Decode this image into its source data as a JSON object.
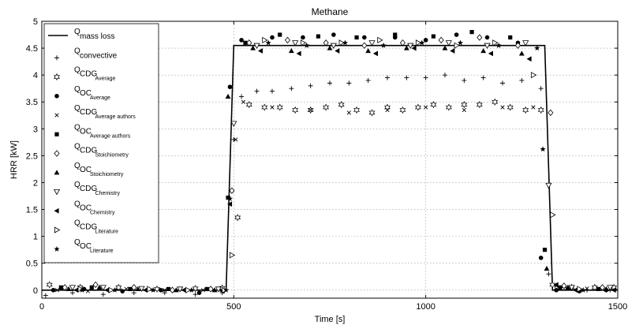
{
  "chart_data": {
    "type": "scatter",
    "title": "Methane",
    "xlabel": "Time [s]",
    "ylabel": "HRR [kW]",
    "xlim": [
      0,
      1500
    ],
    "ylim": [
      -0.15,
      5
    ],
    "xticks": [
      0,
      500,
      1000,
      1500
    ],
    "yticks": [
      0,
      0.5,
      1,
      1.5,
      2,
      2.5,
      3,
      3.5,
      4,
      4.5,
      5
    ],
    "xtick_labels": [
      "0",
      "500",
      "1000",
      "1500"
    ],
    "ytick_labels": [
      "0",
      "0.5",
      "1",
      "1.5",
      "2",
      "2.5",
      "3",
      "3.5",
      "4",
      "4.5",
      "5"
    ],
    "grid": true,
    "legend_position": "upper-left",
    "series": [
      {
        "main": "Q",
        "sub": "mass loss",
        "marker": "line",
        "x": [
          0,
          480,
          500,
          1310,
          1330,
          1500
        ],
        "y": [
          0,
          0,
          4.55,
          4.55,
          0,
          0
        ]
      },
      {
        "main": "Q",
        "sub": "convective",
        "marker": "plus",
        "x": [
          10,
          80,
          160,
          240,
          320,
          400,
          470,
          500,
          520,
          560,
          600,
          650,
          700,
          750,
          800,
          850,
          900,
          950,
          1000,
          1050,
          1100,
          1150,
          1200,
          1250,
          1300,
          1320,
          1360,
          1420,
          1480
        ],
        "y": [
          -0.1,
          -0.05,
          -0.08,
          -0.05,
          -0.05,
          -0.08,
          -0.05,
          2.8,
          3.6,
          3.7,
          3.7,
          3.75,
          3.8,
          3.85,
          3.85,
          3.9,
          3.95,
          3.95,
          3.95,
          4.0,
          3.9,
          3.95,
          3.85,
          3.9,
          3.75,
          0.3,
          0.05,
          0.0,
          0.0
        ]
      },
      {
        "main": "Q",
        "sub": "CDG",
        "sub2": "Average",
        "marker": "star6",
        "x": [
          20,
          100,
          200,
          300,
          400,
          470,
          510,
          540,
          580,
          620,
          660,
          700,
          740,
          780,
          820,
          860,
          900,
          940,
          980,
          1020,
          1060,
          1100,
          1140,
          1180,
          1220,
          1260,
          1300,
          1330,
          1380,
          1440,
          1490
        ],
        "y": [
          0.1,
          0.05,
          0.05,
          0.02,
          0.03,
          0.04,
          1.35,
          3.45,
          3.4,
          3.4,
          3.35,
          3.35,
          3.4,
          3.45,
          3.35,
          3.3,
          3.4,
          3.35,
          3.4,
          3.45,
          3.4,
          3.45,
          3.45,
          3.5,
          3.4,
          3.35,
          3.35,
          0.1,
          0.05,
          0.05,
          0.05
        ]
      },
      {
        "main": "Q",
        "sub": "OC",
        "sub2": "Average",
        "marker": "circle",
        "x": [
          30,
          110,
          210,
          310,
          410,
          490,
          520,
          600,
          680,
          760,
          840,
          920,
          1000,
          1080,
          1160,
          1240,
          1300,
          1340,
          1400,
          1470
        ],
        "y": [
          0.0,
          0.02,
          -0.02,
          0.0,
          -0.05,
          3.78,
          4.65,
          4.7,
          4.7,
          4.75,
          4.7,
          4.7,
          4.65,
          4.75,
          4.7,
          4.6,
          0.6,
          0.0,
          -0.02,
          0.0
        ]
      },
      {
        "main": "Q",
        "sub": "CDG",
        "sub2": "Average authors",
        "marker": "cross",
        "x": [
          40,
          120,
          220,
          320,
          420,
          505,
          525,
          600,
          700,
          800,
          900,
          1000,
          1100,
          1200,
          1280,
          1340,
          1420
        ],
        "y": [
          0.0,
          -0.02,
          0.02,
          0.0,
          0.0,
          2.8,
          3.5,
          3.4,
          3.35,
          3.3,
          3.35,
          3.4,
          3.35,
          3.4,
          3.4,
          0.08,
          0.03
        ]
      },
      {
        "main": "Q",
        "sub": "OC",
        "sub2": "Average authors",
        "marker": "square",
        "x": [
          50,
          130,
          230,
          330,
          430,
          485,
          530,
          620,
          720,
          820,
          920,
          1020,
          1120,
          1220,
          1310,
          1350,
          1450
        ],
        "y": [
          0.05,
          0.05,
          0.02,
          0.02,
          0.02,
          1.72,
          4.6,
          4.75,
          4.72,
          4.7,
          4.75,
          4.72,
          4.8,
          4.7,
          0.75,
          0.05,
          0.02
        ]
      },
      {
        "main": "Q",
        "sub": "CDG",
        "sub2": "Stoichiometry",
        "marker": "diamond",
        "x": [
          60,
          140,
          240,
          340,
          440,
          495,
          540,
          640,
          740,
          840,
          940,
          1040,
          1140,
          1240,
          1325,
          1360,
          1460
        ],
        "y": [
          0.05,
          0.1,
          0.05,
          0.0,
          0.02,
          1.85,
          4.6,
          4.65,
          4.6,
          4.55,
          4.6,
          4.65,
          4.7,
          4.55,
          3.3,
          0.08,
          0.05
        ]
      },
      {
        "main": "Q",
        "sub": "OC",
        "sub2": "Stoichiometry",
        "marker": "triangle-up",
        "x": [
          70,
          150,
          250,
          350,
          450,
          485,
          550,
          650,
          750,
          850,
          950,
          1050,
          1150,
          1250,
          1315,
          1370,
          1470
        ],
        "y": [
          0.02,
          0.05,
          0.02,
          0.0,
          0.0,
          3.6,
          4.5,
          4.45,
          4.5,
          4.45,
          4.5,
          4.5,
          4.45,
          4.4,
          0.4,
          0.05,
          0.02
        ]
      },
      {
        "main": "Q",
        "sub": "CDG",
        "sub2": "Chemistry",
        "marker": "triangle-down",
        "x": [
          80,
          160,
          260,
          360,
          460,
          500,
          560,
          660,
          760,
          860,
          960,
          1060,
          1160,
          1260,
          1320,
          1380,
          1480
        ],
        "y": [
          0.05,
          0.05,
          0.03,
          0.02,
          0.02,
          3.1,
          4.55,
          4.6,
          4.55,
          4.6,
          4.55,
          4.6,
          4.55,
          4.6,
          1.95,
          0.05,
          0.05
        ]
      },
      {
        "main": "Q",
        "sub": "OC",
        "sub2": "Chemistry",
        "marker": "triangle-left",
        "x": [
          90,
          170,
          270,
          370,
          470,
          490,
          570,
          670,
          770,
          870,
          970,
          1070,
          1170,
          1270,
          1340,
          1390,
          1490
        ],
        "y": [
          0.0,
          0.0,
          0.0,
          0.0,
          -0.02,
          1.6,
          4.45,
          4.4,
          4.45,
          4.4,
          4.5,
          4.45,
          4.4,
          4.3,
          0.1,
          0.0,
          0.0
        ]
      },
      {
        "main": "Q",
        "sub": "CDG",
        "sub2": "Literature",
        "marker": "triangle-right",
        "x": [
          100,
          180,
          280,
          380,
          475,
          495,
          580,
          680,
          780,
          880,
          980,
          1080,
          1180,
          1280,
          1330,
          1400
        ],
        "y": [
          0.02,
          0.0,
          0.02,
          0.0,
          0.0,
          0.65,
          4.65,
          4.6,
          4.6,
          4.65,
          4.6,
          4.55,
          4.6,
          4.0,
          1.4,
          0.02
        ]
      },
      {
        "main": "Q",
        "sub": "OC",
        "sub2": "Literature",
        "marker": "star5",
        "x": [
          105,
          190,
          290,
          390,
          480,
          490,
          590,
          690,
          790,
          890,
          990,
          1090,
          1190,
          1290,
          1305,
          1410
        ],
        "y": [
          0.0,
          0.0,
          0.0,
          0.0,
          0.0,
          1.7,
          4.6,
          4.55,
          4.6,
          4.55,
          4.6,
          4.6,
          4.55,
          4.5,
          2.62,
          0.0
        ]
      }
    ]
  }
}
